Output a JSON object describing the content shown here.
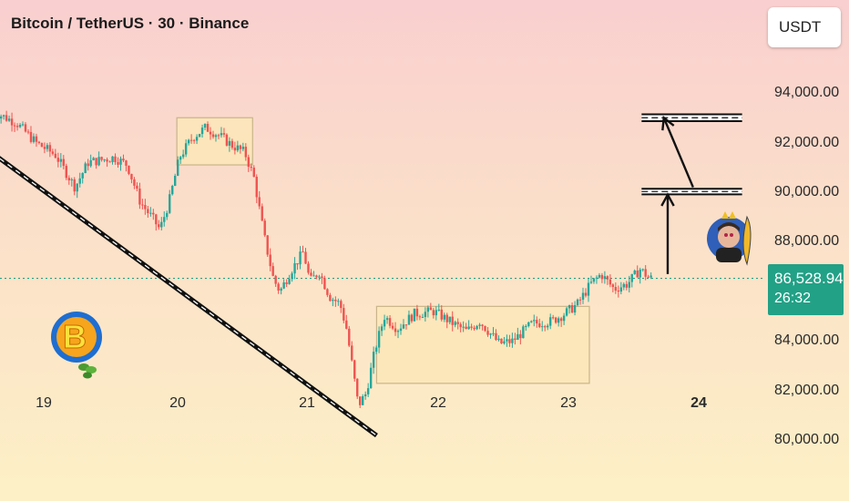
{
  "header": {
    "title": "Bitcoin / TetherUS · 30 · Binance"
  },
  "currency_button": {
    "label": "USDT"
  },
  "last_price": {
    "value": "86,528.94",
    "countdown": "26:32",
    "color": "#22a186"
  },
  "colors": {
    "up": "#26a69a",
    "down": "#ef5350",
    "zone_fill": "#fbe6b8",
    "zone_border": "#c9b48a",
    "price_line": "#22a186"
  },
  "icons": [
    "bitcoin-logo-icon",
    "avatar-sticker-icon"
  ],
  "chart_data": {
    "type": "candlestick",
    "title": "Bitcoin / TetherUS · 30 · Binance",
    "xlabel": "",
    "ylabel": "",
    "x_ticks": [
      "19",
      "20",
      "21",
      "22",
      "23",
      "24"
    ],
    "y_ticks": [
      "94,000.00",
      "92,000.00",
      "90,000.00",
      "88,000.00",
      "84,000.00",
      "82,000.00",
      "80,000.00"
    ],
    "ylim": [
      79500,
      95200
    ],
    "x_range": [
      18.6,
      24.4
    ],
    "grid": false,
    "last_price": 86528.94,
    "price_path": [
      [
        18.6,
        93300
      ],
      [
        18.8,
        92800
      ],
      [
        18.95,
        92000
      ],
      [
        19.1,
        91500
      ],
      [
        19.25,
        90200
      ],
      [
        19.35,
        91200
      ],
      [
        19.55,
        91400
      ],
      [
        19.65,
        91100
      ],
      [
        19.75,
        89600
      ],
      [
        19.85,
        88900
      ],
      [
        19.9,
        88500
      ],
      [
        19.97,
        89600
      ],
      [
        20.05,
        91400
      ],
      [
        20.15,
        92200
      ],
      [
        20.25,
        92600
      ],
      [
        20.35,
        92300
      ],
      [
        20.45,
        91900
      ],
      [
        20.55,
        91600
      ],
      [
        20.62,
        90600
      ],
      [
        20.7,
        88200
      ],
      [
        20.77,
        86500
      ],
      [
        20.82,
        86000
      ],
      [
        20.9,
        86800
      ],
      [
        21.0,
        87600
      ],
      [
        21.05,
        86400
      ],
      [
        21.12,
        86800
      ],
      [
        21.2,
        85800
      ],
      [
        21.28,
        85500
      ],
      [
        21.33,
        84500
      ],
      [
        21.38,
        82800
      ],
      [
        21.42,
        81400
      ],
      [
        21.48,
        81900
      ],
      [
        21.55,
        83700
      ],
      [
        21.62,
        85000
      ],
      [
        21.72,
        84500
      ],
      [
        21.85,
        85100
      ],
      [
        22.0,
        85200
      ],
      [
        22.15,
        84700
      ],
      [
        22.25,
        84400
      ],
      [
        22.35,
        84800
      ],
      [
        22.5,
        83900
      ],
      [
        22.6,
        84000
      ],
      [
        22.75,
        84700
      ],
      [
        22.9,
        84800
      ],
      [
        23.0,
        85100
      ],
      [
        23.1,
        85500
      ],
      [
        23.2,
        86300
      ],
      [
        23.28,
        86700
      ],
      [
        23.38,
        86100
      ],
      [
        23.48,
        86300
      ],
      [
        23.58,
        86900
      ],
      [
        23.65,
        86528.94
      ]
    ],
    "trendline": {
      "from": [
        18.6,
        91600
      ],
      "to": [
        21.55,
        80200
      ]
    },
    "consolidation_zones": [
      {
        "x0": 20.02,
        "x1": 20.6,
        "y0": 91100,
        "y1": 93000
      },
      {
        "x0": 21.55,
        "x1": 23.18,
        "y0": 82300,
        "y1": 85400
      }
    ],
    "horizontal_levels": [
      {
        "x0": 23.58,
        "x1": 24.35,
        "y0": 89950,
        "y1": 90100
      },
      {
        "x0": 23.58,
        "x1": 24.35,
        "y0": 92900,
        "y1": 93100
      }
    ],
    "arrows": [
      {
        "x": 23.78,
        "from": 86700,
        "to": 89900
      },
      {
        "x0": 23.8,
        "from": 90200,
        "x1": 23.89,
        "to": 93000
      }
    ]
  }
}
